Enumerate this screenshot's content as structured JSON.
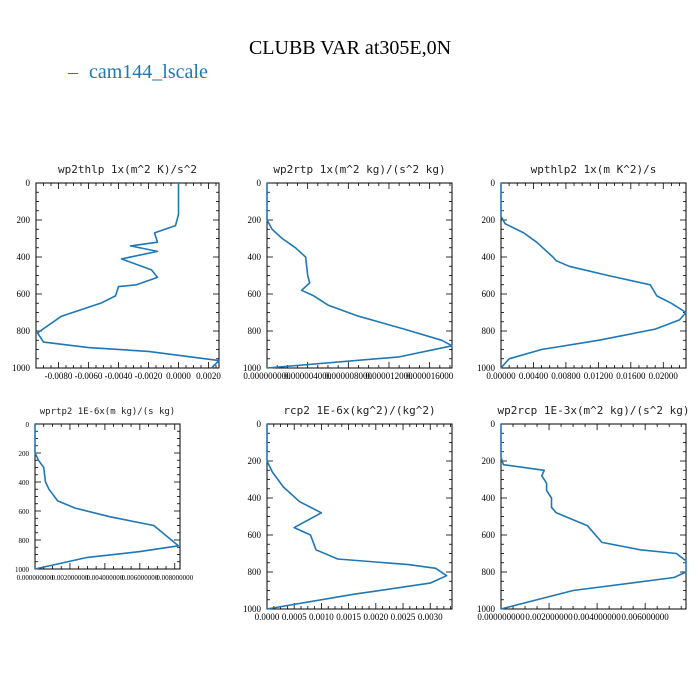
{
  "figure": {
    "title": "CLUBB VAR at305E,0N",
    "legend": {
      "label": "cam144_lscale",
      "marker": "–",
      "color": "#1f77b4"
    }
  },
  "chart_data": [
    {
      "type": "line",
      "title": "wp2thlp  1x(m^2 K)/s^2",
      "series": [
        {
          "name": "cam144_lscale",
          "x": [
            0.0,
            0.0,
            0.0,
            -0.0002,
            -0.0016,
            -0.0014,
            -0.0032,
            -0.0014,
            -0.0038,
            -0.0018,
            -0.0014,
            -0.0028,
            -0.004,
            -0.0042,
            -0.0052,
            -0.0078,
            -0.0094,
            -0.009,
            -0.006,
            -0.002,
            0.0027,
            0.0022
          ],
          "y": [
            0,
            100,
            170,
            230,
            270,
            320,
            340,
            370,
            410,
            470,
            510,
            550,
            560,
            610,
            650,
            720,
            810,
            860,
            890,
            910,
            960,
            1000
          ]
        }
      ],
      "xlim": [
        -0.0095,
        0.0027
      ],
      "ylim": [
        0,
        1000
      ],
      "xticks": [
        "-0.0080",
        "-0.0060",
        "-0.0040",
        "-0.0020",
        "0.0000",
        "0.0020"
      ],
      "xtick_values": [
        -0.008,
        -0.006,
        -0.004,
        -0.002,
        0.0,
        0.002
      ],
      "yticks": [
        "0",
        "200",
        "400",
        "600",
        "800",
        "1000"
      ],
      "ytick_values": [
        0,
        200,
        400,
        600,
        800,
        1000
      ]
    },
    {
      "type": "line",
      "title": "wp2rtp  1x(m^2 kg)/(s^2 kg)",
      "series": [
        {
          "name": "cam144_lscale",
          "x": [
            0.0,
            0.0,
            5e-07,
            1.5e-06,
            2.8e-06,
            3.8e-06,
            4e-06,
            4.2e-06,
            3.4e-06,
            4.6e-06,
            6e-06,
            9e-06,
            1.35e-05,
            1.72e-05,
            1.82e-05,
            1.3e-05,
            0.0
          ],
          "y": [
            0,
            200,
            250,
            300,
            350,
            400,
            500,
            540,
            580,
            610,
            660,
            720,
            790,
            850,
            880,
            940,
            1000
          ]
        }
      ],
      "xlim": [
        0,
        1.82e-05
      ],
      "ylim": [
        0,
        1000
      ],
      "xticks": [
        "0.000000000",
        "0.000004000",
        "0.000008000",
        "0.000012000",
        "0.000016000"
      ],
      "xtick_values": [
        0,
        4e-06,
        8e-06,
        1.2e-05,
        1.6e-05
      ],
      "yticks": [
        "0",
        "200",
        "400",
        "600",
        "800",
        "1000"
      ],
      "ytick_values": [
        0,
        200,
        400,
        600,
        800,
        1000
      ]
    },
    {
      "type": "line",
      "title": "wpthlp2  1x(m K^2)/s",
      "series": [
        {
          "name": "cam144_lscale",
          "x": [
            0.0,
            0.0,
            0.0005,
            0.0028,
            0.0044,
            0.0064,
            0.0068,
            0.0084,
            0.0132,
            0.0184,
            0.0192,
            0.021,
            0.0228,
            0.022,
            0.019,
            0.012,
            0.005,
            0.001,
            0.0
          ],
          "y": [
            0,
            180,
            220,
            270,
            320,
            400,
            420,
            450,
            500,
            550,
            610,
            650,
            700,
            740,
            790,
            850,
            900,
            950,
            1000
          ]
        }
      ],
      "xlim": [
        0,
        0.0228
      ],
      "ylim": [
        0,
        1000
      ],
      "xticks": [
        "0.00000",
        "0.00400",
        "0.00800",
        "0.01200",
        "0.01600",
        "0.02000"
      ],
      "xtick_values": [
        0,
        0.004,
        0.008,
        0.012,
        0.016,
        0.02
      ],
      "yticks": [
        "0",
        "200",
        "400",
        "600",
        "800",
        "1000"
      ],
      "ytick_values": [
        0,
        200,
        400,
        600,
        800,
        1000
      ]
    },
    {
      "type": "line",
      "title": "wprtp2  1E-6x(m kg)/(s kg)",
      "series": [
        {
          "name": "cam144_lscale",
          "x": [
            0.0,
            0.0,
            0.0002,
            0.0005,
            0.0006,
            0.0008,
            0.0013,
            0.0023,
            0.0043,
            0.0068,
            0.0082,
            0.006,
            0.003,
            0.0
          ],
          "y": [
            0,
            200,
            250,
            300,
            400,
            450,
            530,
            580,
            640,
            700,
            840,
            880,
            920,
            1000
          ]
        }
      ],
      "xlim": [
        0,
        0.0083
      ],
      "ylim": [
        0,
        1000
      ],
      "xticks": [
        "0.000000000",
        "0.002000000",
        "0.004000000",
        "0.006000000",
        "0.008000000"
      ],
      "xtick_values": [
        0,
        0.002,
        0.004,
        0.006,
        0.008
      ],
      "yticks": [
        "0",
        "200",
        "400",
        "600",
        "800",
        "1000"
      ],
      "ytick_values": [
        0,
        200,
        400,
        600,
        800,
        1000
      ]
    },
    {
      "type": "line",
      "title": "rcp2  1E-6x(kg^2)/(kg^2)",
      "series": [
        {
          "name": "cam144_lscale",
          "x": [
            0.0,
            0.0,
            0.0001,
            0.0003,
            0.0006,
            0.001,
            0.0005,
            0.0008,
            0.0009,
            0.0013,
            0.0026,
            0.0031,
            0.0033,
            0.003,
            0.0016,
            0.0
          ],
          "y": [
            0,
            200,
            260,
            340,
            420,
            480,
            560,
            600,
            680,
            730,
            760,
            780,
            820,
            860,
            920,
            1000
          ]
        }
      ],
      "xlim": [
        0,
        0.0034
      ],
      "ylim": [
        0,
        1000
      ],
      "xticks": [
        "0.0000",
        "0.0005",
        "0.0010",
        "0.0015",
        "0.0020",
        "0.0025",
        "0.0030"
      ],
      "xtick_values": [
        0,
        0.0005,
        0.001,
        0.0015,
        0.002,
        0.0025,
        0.003
      ],
      "yticks": [
        "0",
        "200",
        "400",
        "600",
        "800",
        "1000"
      ],
      "ytick_values": [
        0,
        200,
        400,
        600,
        800,
        1000
      ]
    },
    {
      "type": "line",
      "title": "wp2rcp  1E-3x(m^2 kg)/(s^2 kg)",
      "series": [
        {
          "name": "cam144_lscale",
          "x": [
            0.0,
            0.0,
            0.0001,
            0.0018,
            0.0017,
            0.0019,
            0.0019,
            0.0021,
            0.0021,
            0.0023,
            0.0036,
            0.0042,
            0.0058,
            0.0073,
            0.0077,
            0.0077,
            0.0072,
            0.003,
            0.0
          ],
          "y": [
            0,
            180,
            220,
            250,
            280,
            320,
            360,
            400,
            450,
            480,
            550,
            640,
            680,
            700,
            740,
            800,
            830,
            900,
            1000
          ]
        }
      ],
      "xlim": [
        0,
        0.0077
      ],
      "ylim": [
        0,
        1000
      ],
      "xticks": [
        "0.000000000",
        "0.002000000",
        "0.004000000",
        "0.006000000"
      ],
      "xtick_values": [
        0,
        0.002,
        0.004,
        0.006
      ],
      "yticks": [
        "0",
        "200",
        "400",
        "600",
        "800",
        "1000"
      ],
      "ytick_values": [
        0,
        200,
        400,
        600,
        800,
        1000
      ]
    }
  ]
}
